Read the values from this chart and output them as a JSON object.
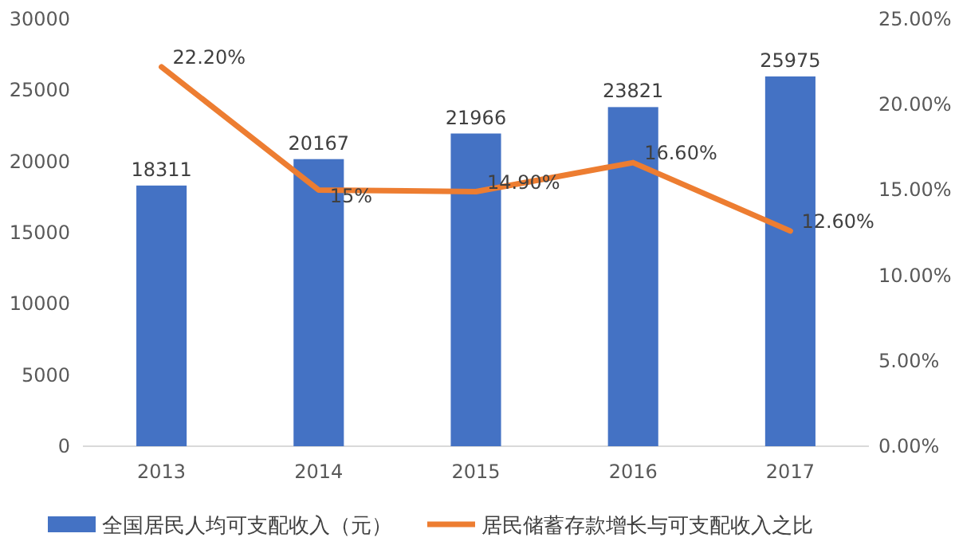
{
  "chart_data": {
    "type": "bar",
    "categories": [
      "2013",
      "2014",
      "2015",
      "2016",
      "2017"
    ],
    "series": [
      {
        "name": "全国居民人均可支配收入（元）",
        "color": "#4472c4",
        "values": [
          18311,
          20167,
          21966,
          23821,
          25975
        ],
        "value_labels": [
          "18311",
          "20167",
          "21966",
          "23821",
          "25975"
        ]
      },
      {
        "name": "居民储蓄存款增长与可支配收入之比",
        "type": "line",
        "axis": "y2",
        "color": "#ed7d31",
        "values": [
          22.2,
          15,
          14.9,
          16.6,
          12.6
        ],
        "value_labels": [
          "22.20%",
          "15%",
          "14.90%",
          "16.60%",
          "12.60%"
        ]
      }
    ],
    "ylim": [
      0,
      30000
    ],
    "yticks": [
      0,
      5000,
      10000,
      15000,
      20000,
      25000,
      30000
    ],
    "y2lim": [
      0,
      25
    ],
    "y2ticks": [
      {
        "value": 0,
        "label": "0.00%"
      },
      {
        "value": 5,
        "label": "5.00%"
      },
      {
        "value": 10,
        "label": "10.00%"
      },
      {
        "value": 15,
        "label": "15.00%"
      },
      {
        "value": 20,
        "label": "20.00%"
      },
      {
        "value": 25,
        "label": "25.00%"
      }
    ],
    "legend": "bottom",
    "grid": false
  }
}
